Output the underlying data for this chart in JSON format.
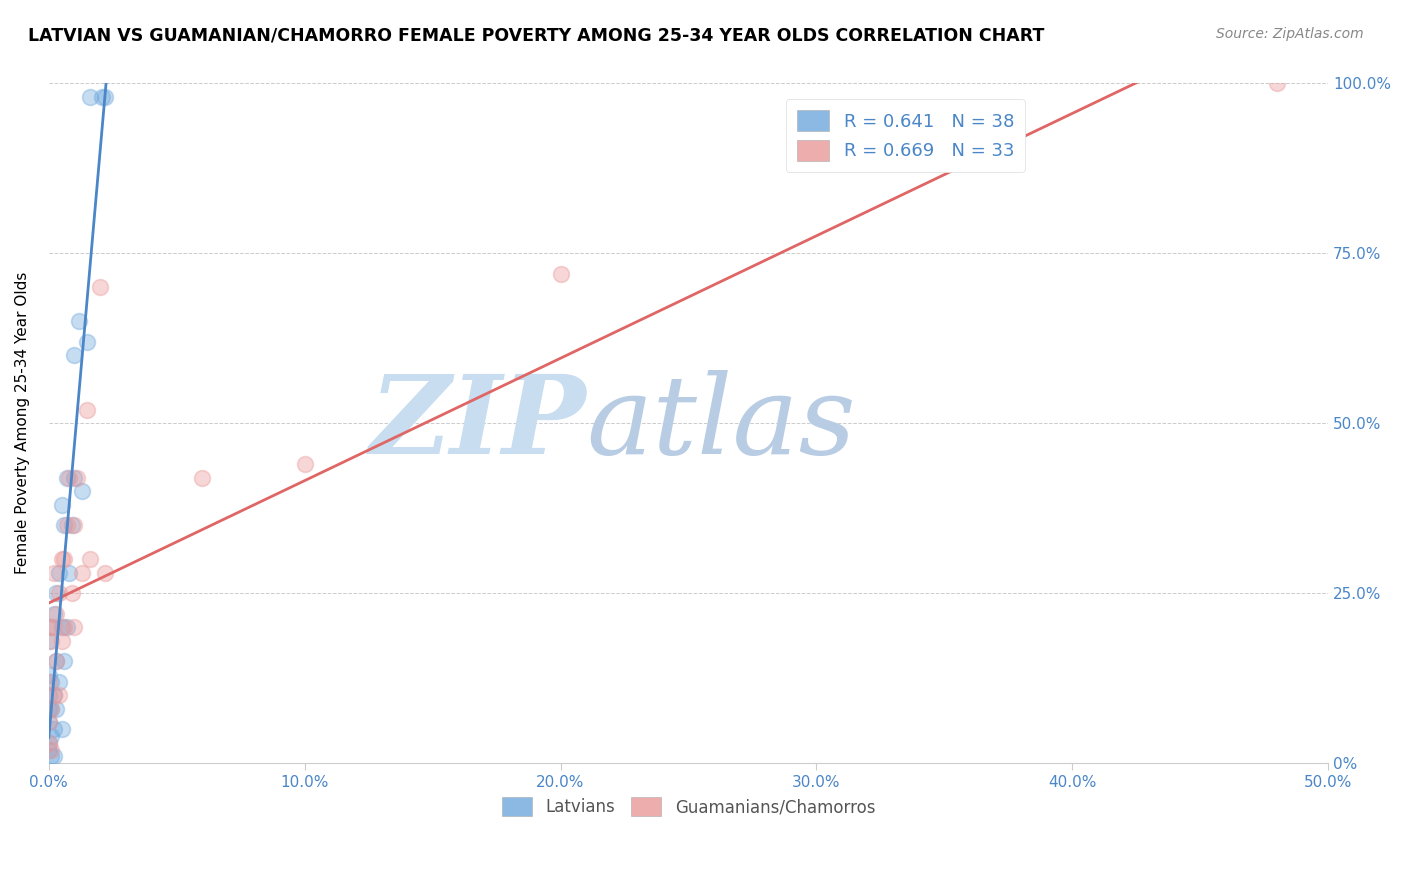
{
  "title": "LATVIAN VS GUAMANIAN/CHAMORRO FEMALE POVERTY AMONG 25-34 YEAR OLDS CORRELATION CHART",
  "source": "Source: ZipAtlas.com",
  "ylabel": "Female Poverty Among 25-34 Year Olds",
  "xlim": [
    0.0,
    0.5
  ],
  "ylim": [
    0.0,
    1.0
  ],
  "xticks": [
    0.0,
    0.1,
    0.2,
    0.3,
    0.4,
    0.5
  ],
  "yticks": [
    0.0,
    0.25,
    0.5,
    0.75,
    1.0
  ],
  "xticklabels": [
    "0.0%",
    "10.0%",
    "20.0%",
    "30.0%",
    "40.0%",
    "50.0%"
  ],
  "yticklabels_right": [
    "0%",
    "25.0%",
    "50.0%",
    "75.0%",
    "100.0%"
  ],
  "legend_R1": "R = 0.641",
  "legend_N1": "N = 38",
  "legend_R2": "R = 0.669",
  "legend_N2": "N = 33",
  "latvian_color": "#6fa8dc",
  "guamanian_color": "#ea9999",
  "latvian_line_color": "#4a86c8",
  "guamanian_line_color": "#e06666",
  "background_color": "#ffffff",
  "grid_color": "#cccccc",
  "watermark_zip": "ZIP",
  "watermark_atlas": "atlas",
  "watermark_color_zip": "#c8ddf0",
  "watermark_color_atlas": "#b8cce4",
  "title_color": "#000000",
  "axis_label_color": "#000000",
  "tick_color_right": "#4a86c8",
  "tick_color_bottom": "#4a86c8",
  "latvian_x": [
    0.0,
    0.0,
    0.0,
    0.0,
    0.0,
    0.0,
    0.0,
    0.001,
    0.001,
    0.001,
    0.001,
    0.001,
    0.002,
    0.002,
    0.002,
    0.002,
    0.003,
    0.003,
    0.003,
    0.004,
    0.004,
    0.005,
    0.005,
    0.005,
    0.006,
    0.006,
    0.007,
    0.007,
    0.008,
    0.009,
    0.01,
    0.01,
    0.012,
    0.013,
    0.015,
    0.016,
    0.021,
    0.022
  ],
  "latvian_y": [
    0.02,
    0.03,
    0.06,
    0.08,
    0.1,
    0.13,
    0.18,
    0.01,
    0.04,
    0.08,
    0.12,
    0.2,
    0.01,
    0.05,
    0.1,
    0.22,
    0.08,
    0.15,
    0.25,
    0.12,
    0.28,
    0.05,
    0.2,
    0.38,
    0.15,
    0.35,
    0.2,
    0.42,
    0.28,
    0.35,
    0.42,
    0.6,
    0.65,
    0.4,
    0.62,
    0.98,
    0.98,
    0.98
  ],
  "guamanian_x": [
    0.0,
    0.0,
    0.0,
    0.0,
    0.001,
    0.001,
    0.001,
    0.002,
    0.002,
    0.002,
    0.003,
    0.003,
    0.004,
    0.004,
    0.005,
    0.005,
    0.006,
    0.006,
    0.007,
    0.008,
    0.009,
    0.01,
    0.01,
    0.011,
    0.013,
    0.015,
    0.016,
    0.02,
    0.022,
    0.06,
    0.1,
    0.2,
    0.48
  ],
  "guamanian_y": [
    0.03,
    0.06,
    0.12,
    0.2,
    0.02,
    0.08,
    0.18,
    0.1,
    0.2,
    0.28,
    0.15,
    0.22,
    0.1,
    0.25,
    0.18,
    0.3,
    0.2,
    0.3,
    0.35,
    0.42,
    0.25,
    0.2,
    0.35,
    0.42,
    0.28,
    0.52,
    0.3,
    0.7,
    0.28,
    0.42,
    0.44,
    0.72,
    1.0
  ],
  "marker_size": 130,
  "marker_alpha": 0.4,
  "marker_linewidth": 1.2
}
